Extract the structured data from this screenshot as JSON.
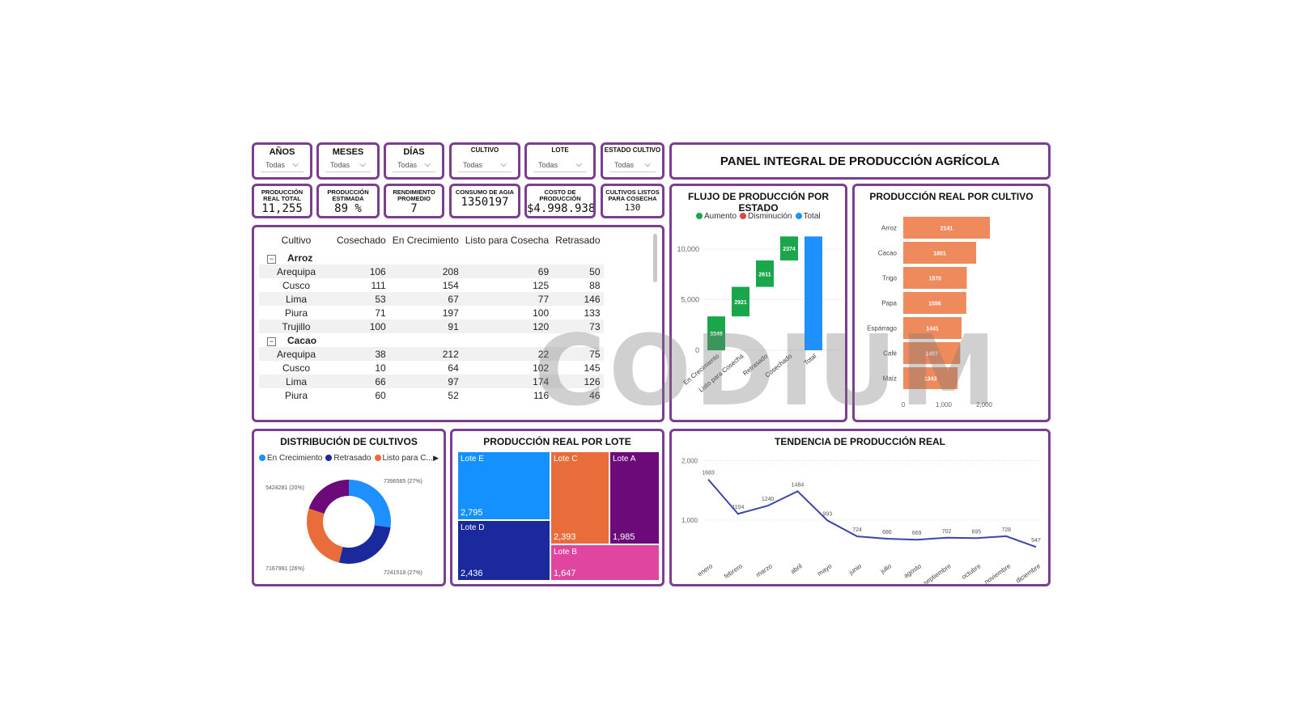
{
  "dashboard_title": "PANEL INTEGRAL DE PRODUCCIÓN AGRÍCOLA",
  "slicers": [
    {
      "label": "AÑOS",
      "value": "Todas"
    },
    {
      "label": "MESES",
      "value": "Todas"
    },
    {
      "label": "DÍAS",
      "value": "Todas"
    },
    {
      "label": "CULTIVO",
      "value": "Todas"
    },
    {
      "label": "LOTE",
      "value": "Todas"
    },
    {
      "label": "ESTADO CULTIVO",
      "value": "Todas"
    }
  ],
  "kpis": [
    {
      "label": "PRODUCCIÓN REAL TOTAL",
      "value": "11,255"
    },
    {
      "label": "PRODUCCIÓN ESTIMADA",
      "value": "89 %"
    },
    {
      "label": "RENDIMIENTO PROMEDIO",
      "value": "7"
    },
    {
      "label": "CONSUMO DE AGIA",
      "value": "1350197"
    },
    {
      "label": "COSTO DE PRODUCCIÓN",
      "value": "$4.998.938"
    },
    {
      "label": "CULTIVOS LISTOS PARA COSECHA",
      "value": "130"
    }
  ],
  "matrix": {
    "headers": [
      "Cultivo",
      "Cosechado",
      "En Crecimiento",
      "Listo para Cosecha",
      "Retrasado"
    ],
    "rows": [
      {
        "type": "group",
        "name": "Arroz"
      },
      {
        "type": "row",
        "c": [
          "Arequipa",
          "106",
          "208",
          "69",
          "50"
        ]
      },
      {
        "type": "row",
        "c": [
          "Cusco",
          "111",
          "154",
          "125",
          "88"
        ]
      },
      {
        "type": "row",
        "c": [
          "Lima",
          "53",
          "67",
          "77",
          "146"
        ]
      },
      {
        "type": "row",
        "c": [
          "Piura",
          "71",
          "197",
          "100",
          "133"
        ]
      },
      {
        "type": "row",
        "c": [
          "Trujillo",
          "100",
          "91",
          "120",
          "73"
        ]
      },
      {
        "type": "group",
        "name": "Cacao"
      },
      {
        "type": "row",
        "c": [
          "Arequipa",
          "38",
          "212",
          "22",
          "75"
        ]
      },
      {
        "type": "row",
        "c": [
          "Cusco",
          "10",
          "64",
          "102",
          "145"
        ]
      },
      {
        "type": "row",
        "c": [
          "Lima",
          "66",
          "97",
          "174",
          "126"
        ]
      },
      {
        "type": "row",
        "c": [
          "Piura",
          "60",
          "52",
          "116",
          "46"
        ]
      }
    ]
  },
  "waterfall": {
    "title": "FLUJO DE PRODUCCIÓN POR ESTADO",
    "legend": [
      {
        "name": "Aumento",
        "color": "#1aa64a"
      },
      {
        "name": "Disminución",
        "color": "#e04545"
      },
      {
        "name": "Total",
        "color": "#1e90ff"
      }
    ]
  },
  "hbar": {
    "title": "PRODUCCIÓN REAL POR CULTIVO"
  },
  "donut": {
    "title": "DISTRIBUCIÓN DE CULTIVOS",
    "legend": [
      {
        "name": "En Crecimiento",
        "color": "#1e90ff"
      },
      {
        "name": "Retrasado",
        "color": "#1a2a9c"
      },
      {
        "name": "Listo para C...",
        "color": "#e96d3a"
      }
    ]
  },
  "treemap": {
    "title": "PRODUCCIÓN REAL POR LOTE",
    "items": [
      {
        "name": "Lote E",
        "value": "2,795",
        "color": "#1591ff"
      },
      {
        "name": "Lote D",
        "value": "2,436",
        "color": "#1a2a9c"
      },
      {
        "name": "Lote C",
        "value": "2,393",
        "color": "#e96d3a"
      },
      {
        "name": "Lote A",
        "value": "1,985",
        "color": "#6b0a78"
      },
      {
        "name": "Lote B",
        "value": "1,647",
        "color": "#e0469f"
      }
    ]
  },
  "line": {
    "title": "TENDENCIA DE PRODUCCIÓN REAL"
  },
  "watermark": "CODIUM",
  "chart_data": [
    {
      "type": "bar",
      "title": "FLUJO DE PRODUCCIÓN POR ESTADO",
      "categories": [
        "En Crecimiento",
        "Listo para Cosecha",
        "Retrasado",
        "Cosechado",
        "Total"
      ],
      "values": [
        3349,
        2921,
        2611,
        2374,
        11255
      ],
      "y_ticks": [
        "0",
        "5,000",
        "10,000"
      ],
      "ylim": [
        0,
        12000
      ],
      "bar_roles": [
        "increase",
        "increase",
        "increase",
        "increase",
        "total"
      ]
    },
    {
      "type": "bar",
      "orientation": "horizontal",
      "title": "PRODUCCIÓN REAL POR CULTIVO",
      "categories": [
        "Arroz",
        "Cacao",
        "Trigo",
        "Papa",
        "Espárrago",
        "Café",
        "Maíz"
      ],
      "values": [
        2141,
        1801,
        1570,
        1556,
        1441,
        1407,
        1343
      ],
      "x_ticks": [
        "0",
        "1,000",
        "2,000"
      ],
      "xlim": [
        0,
        2300
      ],
      "color": "#ef8a5c"
    },
    {
      "type": "pie",
      "title": "DISTRIBUCIÓN DE CULTIVOS",
      "slices": [
        {
          "name": "En Crecimiento",
          "value": 7396565,
          "label": "7396565 (27%)",
          "color": "#1e90ff"
        },
        {
          "name": "Retrasado",
          "value": 7241518,
          "label": "7241518 (27%)",
          "color": "#1a2a9c"
        },
        {
          "name": "Listo para Cosecha",
          "value": 7167991,
          "label": "7167991 (26%)",
          "color": "#e96d3a"
        },
        {
          "name": "Cosechado",
          "value": 5424281,
          "label": "5424281 (20%)",
          "color": "#6b0a78"
        }
      ]
    },
    {
      "type": "line",
      "title": "TENDENCIA DE PRODUCCIÓN REAL",
      "categories": [
        "enero",
        "febrero",
        "marzo",
        "abril",
        "mayo",
        "junio",
        "julio",
        "agosto",
        "septiembre",
        "octubre",
        "noviembre",
        "diciembre"
      ],
      "values": [
        1683,
        1104,
        1240,
        1484,
        993,
        724,
        686,
        669,
        702,
        695,
        728,
        547
      ],
      "y_ticks": [
        "1,000",
        "2,000"
      ],
      "ylim": [
        400,
        2100
      ],
      "color": "#3b47a8"
    }
  ]
}
